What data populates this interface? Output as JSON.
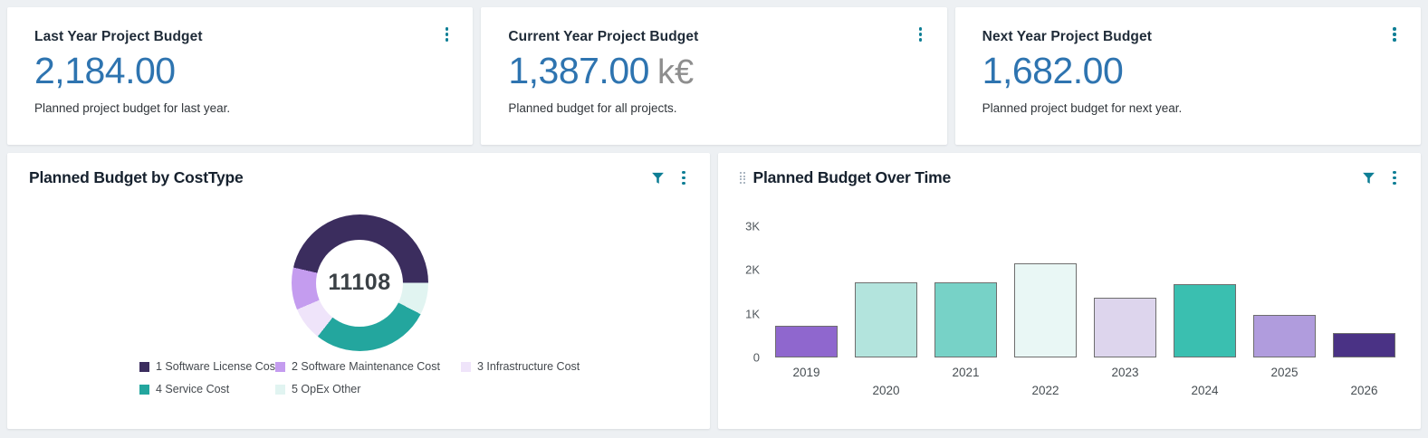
{
  "colors": {
    "accent_teal": "#0E7E95",
    "kpi_value_blue": "#2E74B0",
    "page_bg": "#EDF0F3"
  },
  "kpi_cards": [
    {
      "title": "Last Year Project Budget",
      "value": "2,184.00",
      "suffix": "",
      "description": "Planned project budget for last year."
    },
    {
      "title": "Current Year Project Budget",
      "value": "1,387.00",
      "suffix": "k€",
      "description": "Planned budget for all projects."
    },
    {
      "title": "Next Year Project Budget",
      "value": "1,682.00",
      "suffix": "",
      "description": "Planned project budget for next year."
    }
  ],
  "donut_card": {
    "title": "Planned Budget by CostType",
    "center_value": "11108"
  },
  "bar_card": {
    "title": "Planned Budget Over Time"
  },
  "chart_data": [
    {
      "type": "pie",
      "title": "Planned Budget by CostType",
      "center_total": 11108,
      "legend_position": "bottom",
      "start_angle_deg": 283,
      "segments": [
        {
          "label": "1 Software License Cost",
          "value": 5154,
          "color": "#3B2D5E"
        },
        {
          "label": "2 Software Maintenance Cost",
          "value": 1111,
          "color": "#C49CEF"
        },
        {
          "label": "3 Infrastructure Cost",
          "value": 889,
          "color": "#EFE4FA"
        },
        {
          "label": "4 Service Cost",
          "value": 3111,
          "color": "#23A69E"
        },
        {
          "label": "5 OpEx Other",
          "value": 843,
          "color": "#E1F4F1"
        }
      ]
    },
    {
      "type": "bar",
      "title": "Planned Budget Over Time",
      "categories": [
        "2019",
        "2020",
        "2021",
        "2022",
        "2023",
        "2024",
        "2025",
        "2026"
      ],
      "values": [
        730,
        1720,
        1720,
        2150,
        1360,
        1680,
        980,
        560
      ],
      "bar_colors": [
        "#8F67CE",
        "#B3E4DD",
        "#77D2C7",
        "#E9F7F5",
        "#DDD5ED",
        "#3ABFB0",
        "#B09CDD",
        "#4A3285"
      ],
      "ylim": [
        0,
        3000
      ],
      "yticks": [
        "0",
        "1K",
        "2K",
        "3K"
      ],
      "grid": false,
      "legend_position": "none"
    }
  ]
}
